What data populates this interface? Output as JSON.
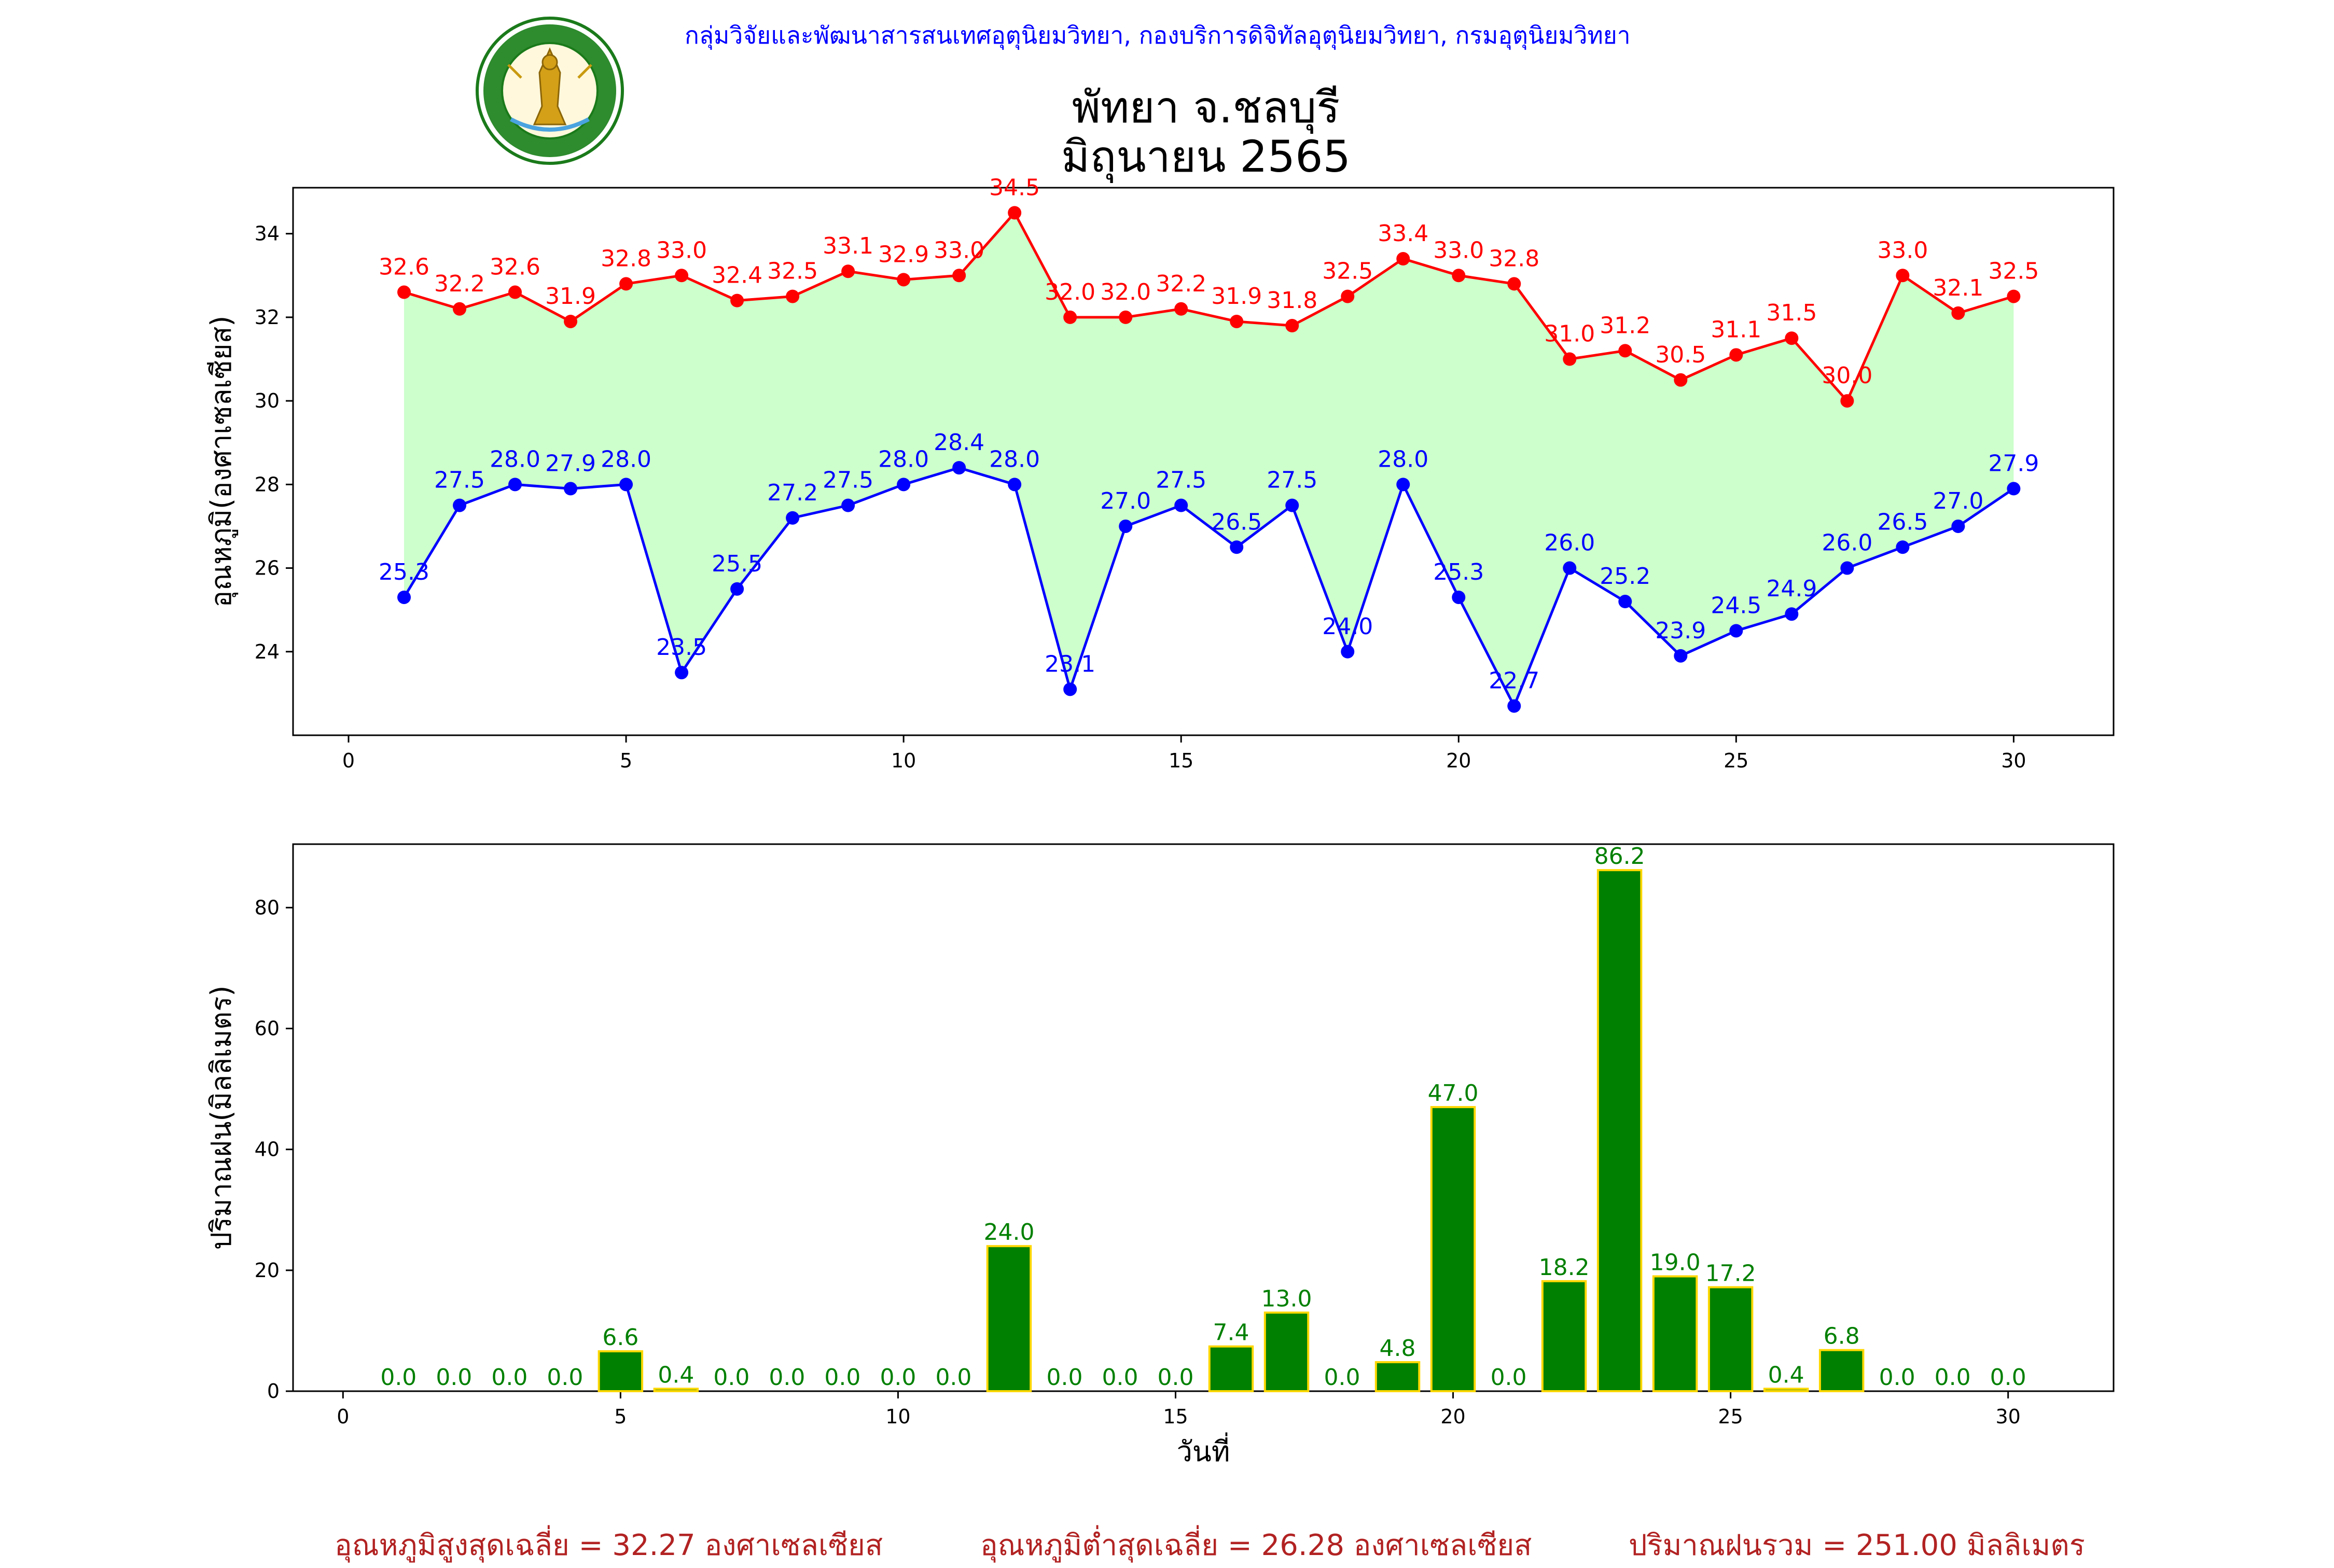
{
  "header": {
    "credit": "กลุ่มวิจัยและพัฒนาสารสนเทศอุตุนิยมวิทยา, กองบริการดิจิทัลอุตุนิยมวิทยา, กรมอุตุนิยมวิทยา",
    "logo_text": "กรมอุตุนิยมวิทยา METEOROLOGICAL DEPARTMENT"
  },
  "title_line1": "พัทยา จ.ชลบุรี",
  "title_line2": "มิถุนายน 2565",
  "footer": {
    "avg_max": "อุณหภูมิสูงสุดเฉลี่ย = 32.27 องศาเซลเซียส",
    "avg_min": "อุณหภูมิต่ำสุดเฉลี่ย = 26.28 องศาเซลเซียส",
    "rain_total": "ปริมาณฝนรวม = 251.00 มิลลิเมตร"
  },
  "chart_data": [
    {
      "type": "line",
      "ylabel": "อุณหภูมิ(องศาเซลเซียส)",
      "xlabel": "",
      "x": [
        1,
        2,
        3,
        4,
        5,
        6,
        7,
        8,
        9,
        10,
        11,
        12,
        13,
        14,
        15,
        16,
        17,
        18,
        19,
        20,
        21,
        22,
        23,
        24,
        25,
        26,
        27,
        28,
        29,
        30
      ],
      "xlim": [
        -1,
        31.8
      ],
      "ylim": [
        22,
        35.1
      ],
      "xticks": [
        0,
        5,
        10,
        15,
        20,
        25,
        30
      ],
      "yticks": [
        24,
        26,
        28,
        30,
        32,
        34
      ],
      "fill_between": true,
      "colors": {
        "max": "#ff0000",
        "min": "#0000ff",
        "fill": "#ccffcc"
      },
      "series": [
        {
          "values": [
            32.6,
            32.2,
            32.6,
            31.9,
            32.8,
            33.0,
            32.4,
            32.5,
            33.1,
            32.9,
            33.0,
            34.5,
            32.0,
            32.0,
            32.2,
            31.9,
            31.8,
            32.5,
            33.4,
            33.0,
            32.8,
            31.0,
            31.2,
            30.5,
            31.1,
            31.5,
            30.0,
            33.0,
            32.1,
            32.5
          ]
        },
        {
          "values": [
            25.3,
            27.5,
            28.0,
            27.9,
            28.0,
            23.5,
            25.5,
            27.2,
            27.5,
            28.0,
            28.4,
            28.0,
            23.1,
            27.0,
            27.5,
            26.5,
            27.5,
            24.0,
            28.0,
            25.3,
            22.7,
            26.0,
            25.2,
            23.9,
            24.5,
            24.9,
            26.0,
            26.5,
            27.0,
            27.9
          ]
        }
      ]
    },
    {
      "type": "bar",
      "ylabel": "ปริมาณฝน(มิลลิเมตร)",
      "xlabel": "วันที่",
      "x": [
        1,
        2,
        3,
        4,
        5,
        6,
        7,
        8,
        9,
        10,
        11,
        12,
        13,
        14,
        15,
        16,
        17,
        18,
        19,
        20,
        21,
        22,
        23,
        24,
        25,
        26,
        27,
        28,
        29,
        30
      ],
      "xlim": [
        -0.9,
        31.9
      ],
      "ylim": [
        0,
        90.5
      ],
      "xticks": [
        0,
        5,
        10,
        15,
        20,
        25,
        30
      ],
      "yticks": [
        0,
        20,
        40,
        60,
        80
      ],
      "colors": {
        "bar": "#008000",
        "edge": "#ffd700",
        "label": "#008000"
      },
      "values": [
        0.0,
        0.0,
        0.0,
        0.0,
        6.6,
        0.4,
        0.0,
        0.0,
        0.0,
        0.0,
        0.0,
        24.0,
        0.0,
        0.0,
        0.0,
        7.4,
        13.0,
        0.0,
        4.8,
        47.0,
        0.0,
        18.2,
        86.2,
        19.0,
        17.2,
        0.4,
        6.8,
        0.0,
        0.0,
        0.0
      ]
    }
  ]
}
